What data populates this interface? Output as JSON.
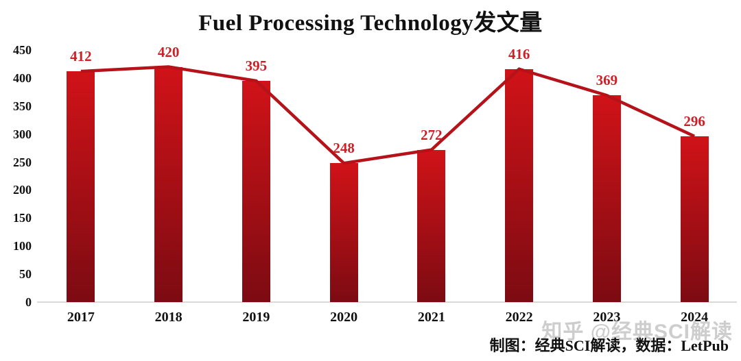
{
  "chart_data": {
    "type": "bar",
    "overlay": "line",
    "title": "Fuel Processing Technology发文量",
    "categories": [
      "2017",
      "2018",
      "2019",
      "2020",
      "2021",
      "2022",
      "2023",
      "2024"
    ],
    "values": [
      412,
      420,
      395,
      248,
      272,
      416,
      369,
      296
    ],
    "xlabel": "",
    "ylabel": "",
    "ylim": [
      0,
      450
    ],
    "yticks": [
      0,
      50,
      100,
      150,
      200,
      250,
      300,
      350,
      400,
      450
    ],
    "grid": false,
    "legend": false,
    "data_labels": true,
    "colors": {
      "bar_gradient_top": "#d01318",
      "bar_gradient_bottom": "#7c0b12",
      "trend_line": "#b5121a",
      "value_label": "#cc2026",
      "axis_text": "#111111",
      "baseline": "#d9d9d9"
    }
  },
  "footer": {
    "credit": "制图：经典SCI解读，数据：LetPub",
    "watermark": "知乎 @经典SCI解读"
  }
}
